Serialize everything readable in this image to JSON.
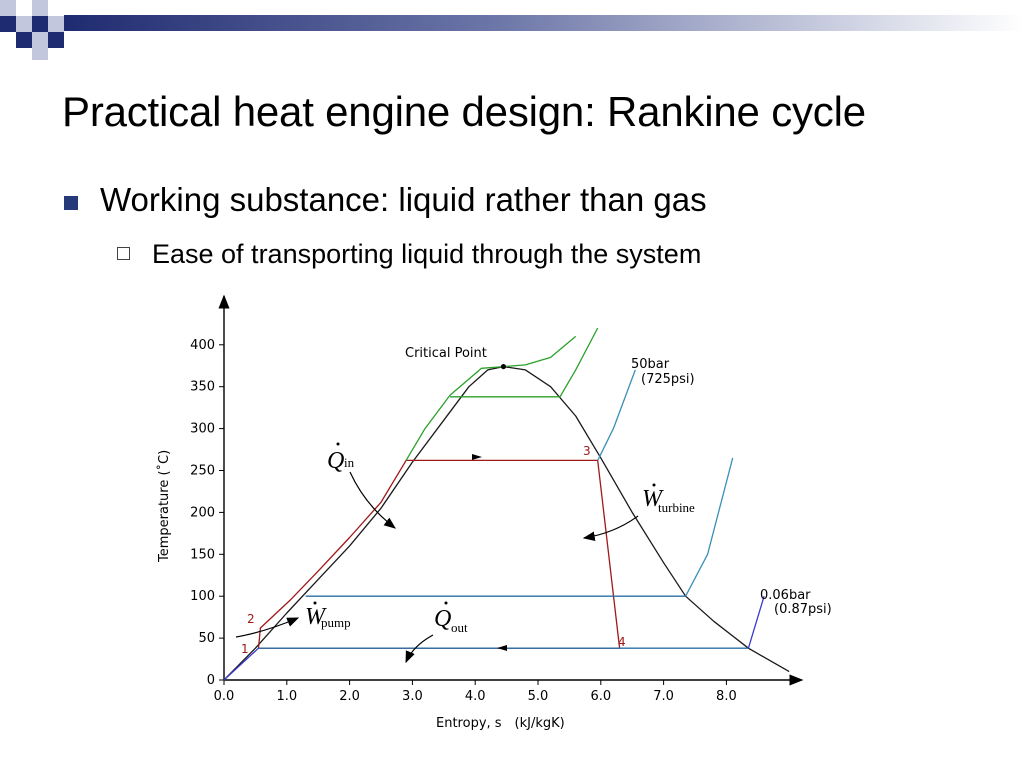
{
  "slide": {
    "title": "Practical heat engine design: Rankine cycle",
    "bullets": [
      {
        "text": "Working substance: liquid rather than gas",
        "marker": "filled-square-bullet"
      },
      {
        "text": "Ease of transporting liquid through the system",
        "marker": "hollow-square-bullet"
      }
    ],
    "accent_color": "#263a7a"
  },
  "figure": {
    "x_label": "Entropy, s　(kJ/kgK)",
    "y_label": "Temperature (˚C)",
    "x_ticks": [
      "0.0",
      "1.0",
      "2.0",
      "3.0",
      "4.0",
      "5.0",
      "6.0",
      "7.0",
      "8.0"
    ],
    "y_ticks": [
      "0",
      "50",
      "100",
      "150",
      "200",
      "250",
      "300",
      "350",
      "400"
    ],
    "critical_point_label": "Critical Point",
    "high_pressure_label": "50bar",
    "high_pressure_alt": "(725psi)",
    "low_pressure_label": "0.06bar",
    "low_pressure_alt": "(0.87psi)",
    "point_labels": [
      "1",
      "2",
      "3",
      "4"
    ],
    "q_in": {
      "symbol": "Q",
      "sub": "in"
    },
    "q_out": {
      "symbol": "Q",
      "sub": "out"
    },
    "w_turbine": {
      "symbol": "W",
      "sub": "turbine"
    },
    "w_pump": {
      "symbol": "W",
      "sub": "pump"
    }
  },
  "chart_data": {
    "type": "line",
    "xlabel": "Entropy, s　(kJ/kgK)",
    "ylabel": "Temperature (˚C)",
    "xlim": [
      0,
      9
    ],
    "ylim": [
      0,
      430
    ],
    "x_ticks": [
      0,
      1,
      2,
      3,
      4,
      5,
      6,
      7,
      8
    ],
    "y_ticks": [
      0,
      50,
      100,
      150,
      200,
      250,
      300,
      350,
      400
    ],
    "critical_point": [
      4.45,
      374
    ],
    "series": [
      {
        "color": "#1a1a1a",
        "points": [
          [
            0,
            0
          ],
          [
            0.5,
            38
          ],
          [
            1.0,
            80
          ],
          [
            1.5,
            120
          ],
          [
            2.0,
            160
          ],
          [
            2.5,
            205
          ],
          [
            3.0,
            260
          ],
          [
            3.5,
            310
          ],
          [
            3.9,
            350
          ],
          [
            4.2,
            370
          ],
          [
            4.45,
            374
          ],
          [
            4.8,
            370
          ],
          [
            5.2,
            350
          ],
          [
            5.6,
            315
          ],
          [
            6.0,
            265
          ],
          [
            6.5,
            200
          ],
          [
            7.0,
            140
          ],
          [
            7.35,
            100
          ],
          [
            7.8,
            70
          ],
          [
            8.35,
            38
          ],
          [
            9.0,
            10
          ]
        ]
      },
      {
        "color": "#a01818",
        "points": [
          [
            0.55,
            38
          ],
          [
            0.58,
            62
          ],
          [
            1.05,
            95
          ],
          [
            1.5,
            130
          ],
          [
            2.0,
            170
          ],
          [
            2.5,
            212
          ],
          [
            2.9,
            262
          ],
          [
            5.95,
            262
          ],
          [
            6.3,
            38
          ],
          [
            0.55,
            38
          ]
        ]
      },
      {
        "color": "#2aa02a",
        "points": [
          [
            2.9,
            262
          ],
          [
            3.2,
            300
          ],
          [
            3.6,
            340
          ],
          [
            4.1,
            372
          ],
          [
            4.45,
            374
          ],
          [
            4.8,
            376
          ],
          [
            5.2,
            385
          ],
          [
            5.6,
            410
          ]
        ]
      },
      {
        "color": "#2aa02a",
        "points": [
          [
            3.6,
            338
          ],
          [
            5.35,
            338
          ],
          [
            5.6,
            370
          ],
          [
            5.95,
            420
          ]
        ]
      },
      {
        "color": "#3a8fb8",
        "points": [
          [
            5.95,
            262
          ],
          [
            6.2,
            300
          ],
          [
            6.55,
            370
          ]
        ]
      },
      {
        "color": "#2a6fa8",
        "points": [
          [
            1.3,
            100
          ],
          [
            7.35,
            100
          ]
        ]
      },
      {
        "color": "#2a6fa8",
        "points": [
          [
            0.55,
            38
          ],
          [
            8.35,
            38
          ]
        ]
      },
      {
        "color": "#3a8fb8",
        "points": [
          [
            7.35,
            100
          ],
          [
            7.7,
            150
          ],
          [
            8.1,
            265
          ]
        ]
      },
      {
        "color": "#3a3ad0",
        "points": [
          [
            0,
            0
          ],
          [
            0.55,
            38
          ]
        ]
      },
      {
        "color": "#3a3ad0",
        "points": [
          [
            8.35,
            38
          ],
          [
            8.6,
            100
          ]
        ]
      }
    ]
  }
}
